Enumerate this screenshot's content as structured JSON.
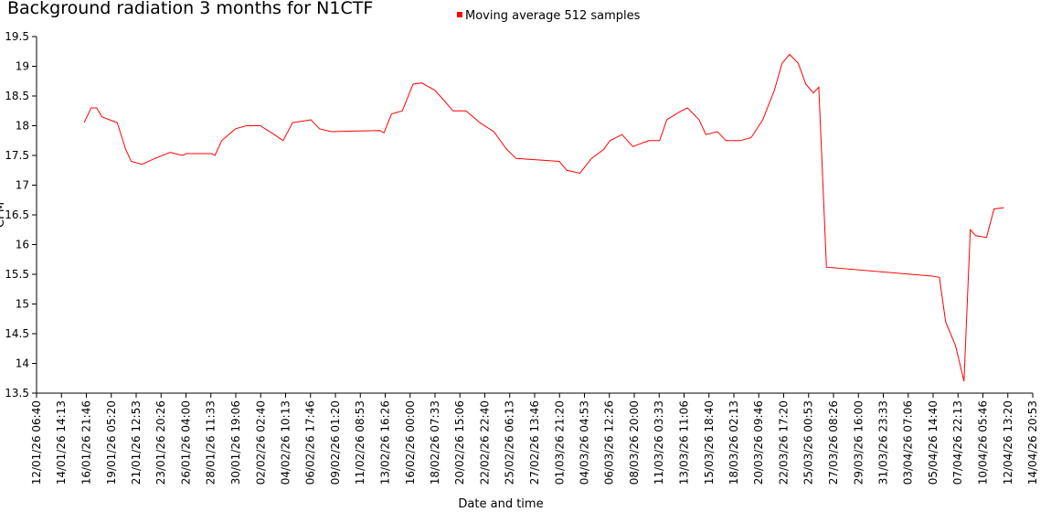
{
  "chart_data": {
    "type": "line",
    "title": "Background radiation 3 months for N1CTF",
    "xlabel": "Date and time",
    "ylabel": "CPM",
    "legend": "top",
    "xlim": [
      "12/01/26 06:40",
      "14/04/26 20:53"
    ],
    "xticks": [
      "12/01/26 06:40",
      "14/01/26 14:13",
      "16/01/26 21:46",
      "19/01/26 05:20",
      "21/01/26 12:53",
      "23/01/26 20:26",
      "26/01/26 04:00",
      "28/01/26 11:33",
      "30/01/26 19:06",
      "02/02/26 02:40",
      "04/02/26 10:13",
      "06/02/26 17:46",
      "09/02/26 01:20",
      "11/02/26 08:53",
      "13/02/26 16:26",
      "16/02/26 00:00",
      "18/02/26 07:33",
      "20/02/26 15:06",
      "22/02/26 22:40",
      "25/02/26 06:13",
      "27/02/26 13:46",
      "01/03/26 21:20",
      "04/03/26 04:53",
      "06/03/26 12:26",
      "08/03/26 20:00",
      "11/03/26 03:33",
      "13/03/26 11:06",
      "15/03/26 18:40",
      "18/03/26 02:13",
      "20/03/26 09:46",
      "22/03/26 17:20",
      "25/03/26 00:53",
      "27/03/26 08:26",
      "29/03/26 16:00",
      "31/03/26 23:33",
      "03/04/26 07:06",
      "05/04/26 14:40",
      "07/04/26 22:13",
      "10/04/26 05:46",
      "12/04/26 13:20",
      "14/04/26 20:53"
    ],
    "ylim": [
      13.5,
      19.5
    ],
    "yticks": [
      13.5,
      14,
      14.5,
      15,
      15.5,
      16,
      16.5,
      17,
      17.5,
      18,
      18.5,
      19,
      19.5
    ],
    "x": [
      "16/01/26 16:40",
      "17/01/26 08:40",
      "17/01/26 20:40",
      "18/01/26 08:40",
      "19/01/26 18:40",
      "20/01/26 13:40",
      "21/01/26 01:40",
      "22/01/26 01:40",
      "23/01/26 06:40",
      "24/01/26 16:40",
      "25/01/26 20:40",
      "26/01/26 04:40",
      "28/01/26 13:40",
      "28/01/26 20:40",
      "29/01/26 11:40",
      "30/01/26 18:40",
      "31/01/26 18:40",
      "02/02/26 01:40",
      "03/02/26 08:40",
      "04/02/26 04:40",
      "05/02/26 01:40",
      "06/02/26 18:40",
      "07/02/26 13:40",
      "08/02/26 16:40",
      "13/02/26 04:40",
      "13/02/26 13:40",
      "14/02/26 06:40",
      "15/02/26 06:40",
      "16/02/26 06:40",
      "17/02/26 01:40",
      "18/02/26 06:40",
      "19/02/26 06:40",
      "19/02/26 23:40",
      "21/02/26 04:40",
      "22/02/26 11:40",
      "23/02/26 18:40",
      "24/02/26 23:40",
      "25/02/26 20:40",
      "01/03/26 20:40",
      "02/03/26 13:40",
      "03/03/26 18:40",
      "04/03/26 20:40",
      "05/03/26 23:40",
      "06/03/26 13:40",
      "07/03/26 16:40",
      "08/03/26 16:40",
      "10/03/26 04:40",
      "11/03/26 04:40",
      "11/03/26 20:40",
      "13/03/26 04:40",
      "13/03/26 18:40",
      "14/03/26 20:40",
      "15/03/26 11:40",
      "16/03/26 13:40",
      "17/03/26 08:40",
      "18/03/26 16:40",
      "19/03/26 16:40",
      "20/03/26 18:40",
      "21/03/26 20:40",
      "22/03/26 13:40",
      "23/03/26 06:40",
      "24/03/26 01:40",
      "24/03/26 18:40",
      "25/03/26 11:40",
      "25/03/26 23:40",
      "26/03/26 16:40",
      "05/04/26 11:40",
      "06/04/26 04:40",
      "06/04/26 18:40",
      "07/04/26 16:40",
      "08/04/26 11:40",
      "09/04/26 01:40",
      "09/04/26 13:40",
      "10/04/26 13:40",
      "11/04/26 06:40",
      "12/04/26 04:40"
    ],
    "series": [
      {
        "name": "Moving average 512 samples",
        "color": "#ff0000",
        "values": [
          18.05,
          18.3,
          18.3,
          18.15,
          18.05,
          17.6,
          17.4,
          17.35,
          17.45,
          17.55,
          17.5,
          17.53,
          17.53,
          17.5,
          17.75,
          17.95,
          18.0,
          18.0,
          17.85,
          17.75,
          18.05,
          18.1,
          17.95,
          17.9,
          17.92,
          17.88,
          18.2,
          18.25,
          18.7,
          18.72,
          18.6,
          18.4,
          18.25,
          18.25,
          18.05,
          17.9,
          17.6,
          17.45,
          17.4,
          17.25,
          17.2,
          17.45,
          17.6,
          17.75,
          17.85,
          17.65,
          17.75,
          17.75,
          18.1,
          18.25,
          18.3,
          18.1,
          17.85,
          17.9,
          17.75,
          17.75,
          17.8,
          18.1,
          18.6,
          19.05,
          19.2,
          19.05,
          18.7,
          18.55,
          18.65,
          15.62,
          15.47,
          15.45,
          14.7,
          14.3,
          13.7,
          16.25,
          16.15,
          16.12,
          16.6,
          16.62
        ]
      }
    ]
  }
}
